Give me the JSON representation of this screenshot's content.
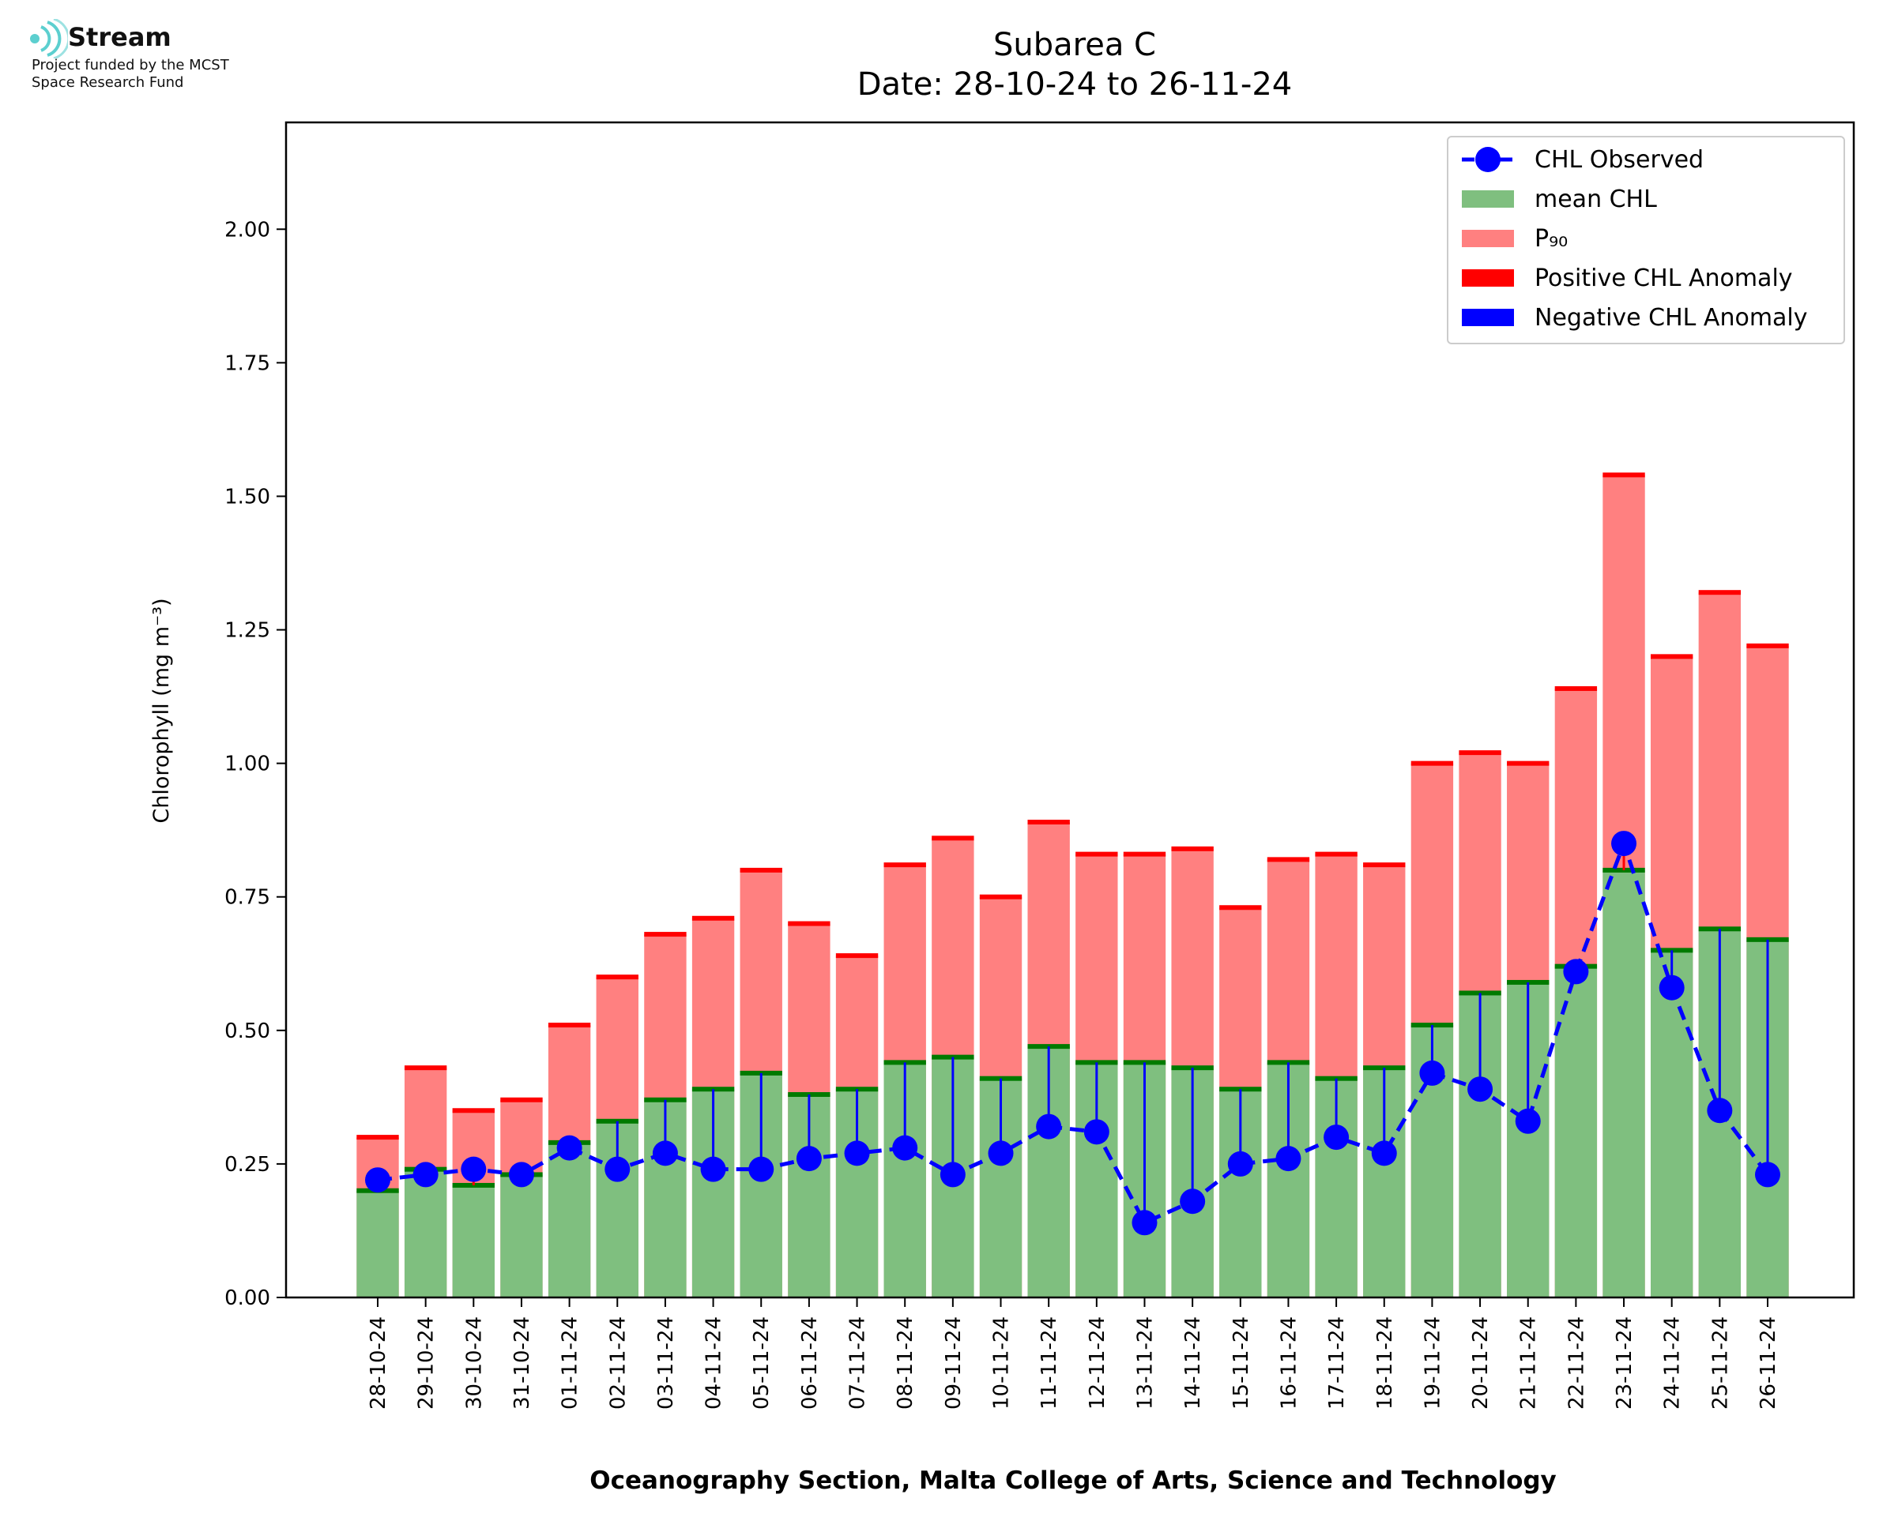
{
  "logo": {
    "name": "Stream",
    "line1": "Project funded by the MCST",
    "line2": "Space Research Fund",
    "accent": "#5ccfcf"
  },
  "chart_data": {
    "type": "bar",
    "title": "Subarea C",
    "subtitle": "Date: 28-10-24 to 26-11-24",
    "xlabel": "Oceanography Section, Malta College of Arts, Science and Technology",
    "ylabel": "Chlorophyll (mg m⁻³)",
    "ylim": [
      0,
      2.2
    ],
    "yticks": [
      "0.00",
      "0.25",
      "0.50",
      "0.75",
      "1.00",
      "1.25",
      "1.50",
      "1.75",
      "2.00"
    ],
    "categories": [
      "28-10-24",
      "29-10-24",
      "30-10-24",
      "31-10-24",
      "01-11-24",
      "02-11-24",
      "03-11-24",
      "04-11-24",
      "05-11-24",
      "06-11-24",
      "07-11-24",
      "08-11-24",
      "09-11-24",
      "10-11-24",
      "11-11-24",
      "12-11-24",
      "13-11-24",
      "14-11-24",
      "15-11-24",
      "16-11-24",
      "17-11-24",
      "18-11-24",
      "19-11-24",
      "20-11-24",
      "21-11-24",
      "22-11-24",
      "23-11-24",
      "24-11-24",
      "25-11-24",
      "26-11-24"
    ],
    "series": [
      {
        "name": "CHL Observed",
        "type": "line",
        "color": "#0000ff",
        "values": [
          0.22,
          0.23,
          0.24,
          0.23,
          0.28,
          0.24,
          0.27,
          0.24,
          0.24,
          0.26,
          0.27,
          0.28,
          0.23,
          0.27,
          0.32,
          0.31,
          0.14,
          0.18,
          0.25,
          0.26,
          0.3,
          0.27,
          0.42,
          0.39,
          0.33,
          0.61,
          0.85,
          0.58,
          0.35,
          0.23
        ]
      },
      {
        "name": "mean CHL",
        "type": "bar",
        "color": "#7fbf7f",
        "values": [
          0.2,
          0.24,
          0.21,
          0.23,
          0.29,
          0.33,
          0.37,
          0.39,
          0.42,
          0.38,
          0.39,
          0.44,
          0.45,
          0.41,
          0.47,
          0.44,
          0.44,
          0.43,
          0.39,
          0.44,
          0.41,
          0.43,
          0.51,
          0.57,
          0.59,
          0.62,
          0.8,
          0.65,
          0.69,
          0.67
        ]
      },
      {
        "name": "P₉₀",
        "type": "bar",
        "color": "#ff8080",
        "values": [
          0.3,
          0.43,
          0.35,
          0.37,
          0.51,
          0.6,
          0.68,
          0.71,
          0.8,
          0.7,
          0.64,
          0.81,
          0.86,
          0.75,
          0.89,
          0.83,
          0.83,
          0.84,
          0.73,
          0.82,
          0.83,
          0.81,
          1.0,
          1.02,
          1.0,
          1.14,
          1.54,
          1.2,
          1.32,
          1.22
        ]
      }
    ],
    "legend": {
      "position": "top-right",
      "entries": [
        {
          "label": "CHL Observed",
          "color": "#0000ff",
          "kind": "line-marker"
        },
        {
          "label": "mean CHL",
          "color": "#7fbf7f",
          "kind": "patch"
        },
        {
          "label": "P₉₀",
          "color": "#ff8080",
          "kind": "patch"
        },
        {
          "label": "Positive CHL Anomaly",
          "color": "#ff0000",
          "kind": "patch"
        },
        {
          "label": "Negative CHL Anomaly",
          "color": "#0000ff",
          "kind": "patch"
        }
      ]
    },
    "grid": false
  }
}
